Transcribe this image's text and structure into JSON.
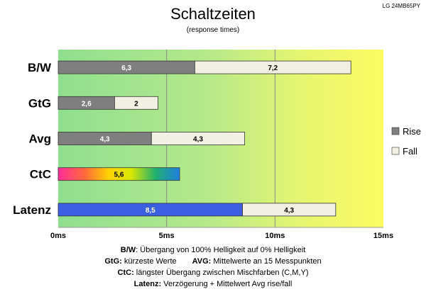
{
  "chart_data": {
    "type": "bar",
    "orientation": "horizontal",
    "stacked": true,
    "title": "Schaltzeiten",
    "subtitle": "(response times)",
    "model": "LG 24MB65PY",
    "categories": [
      "B/W",
      "GtG",
      "Avg",
      "CtC",
      "Latenz"
    ],
    "series": [
      {
        "name": "Rise",
        "values": [
          6.3,
          2.6,
          4.3,
          5.6,
          8.5
        ],
        "labels": [
          "6,3",
          "2,6",
          "4,3",
          "5,6",
          "8,5"
        ]
      },
      {
        "name": "Fall",
        "values": [
          7.2,
          2.0,
          4.3,
          0,
          4.3
        ],
        "labels": [
          "7,2",
          "2",
          "4,3",
          "",
          "4,3"
        ]
      }
    ],
    "xlim": [
      0,
      15
    ],
    "xticks": [
      0,
      5,
      10,
      15
    ],
    "xtick_labels": [
      "0ms",
      "5ms",
      "10ms",
      "15ms"
    ],
    "gridlines": "vertical",
    "legend_position": "right",
    "colors": {
      "rise": "#7f7f7f",
      "fall": "#f2efe3",
      "latenz_rise": "#3c5fe0",
      "bg_green": "#8fdf8f",
      "bg_yellow": "#fcfc60"
    }
  },
  "notes": {
    "bw_key": "B/W",
    "bw_text": ":  Übergang von 100% Helligkeit auf 0% Helligkeit",
    "gtg_key": "GtG:",
    "gtg_text": " kürzeste  Werte",
    "avg_key": "AVG:",
    "avg_text": " Mittelwerte  an 15 Messpunkten",
    "ctc_key": "CtC:",
    "ctc_text": " längster Übergang  zwischen Mischfarben  (C,M,Y)",
    "latenz_key": "Latenz:",
    "latenz_text": " Verzögerung  + Mittelwert  Avg rise/fall"
  }
}
